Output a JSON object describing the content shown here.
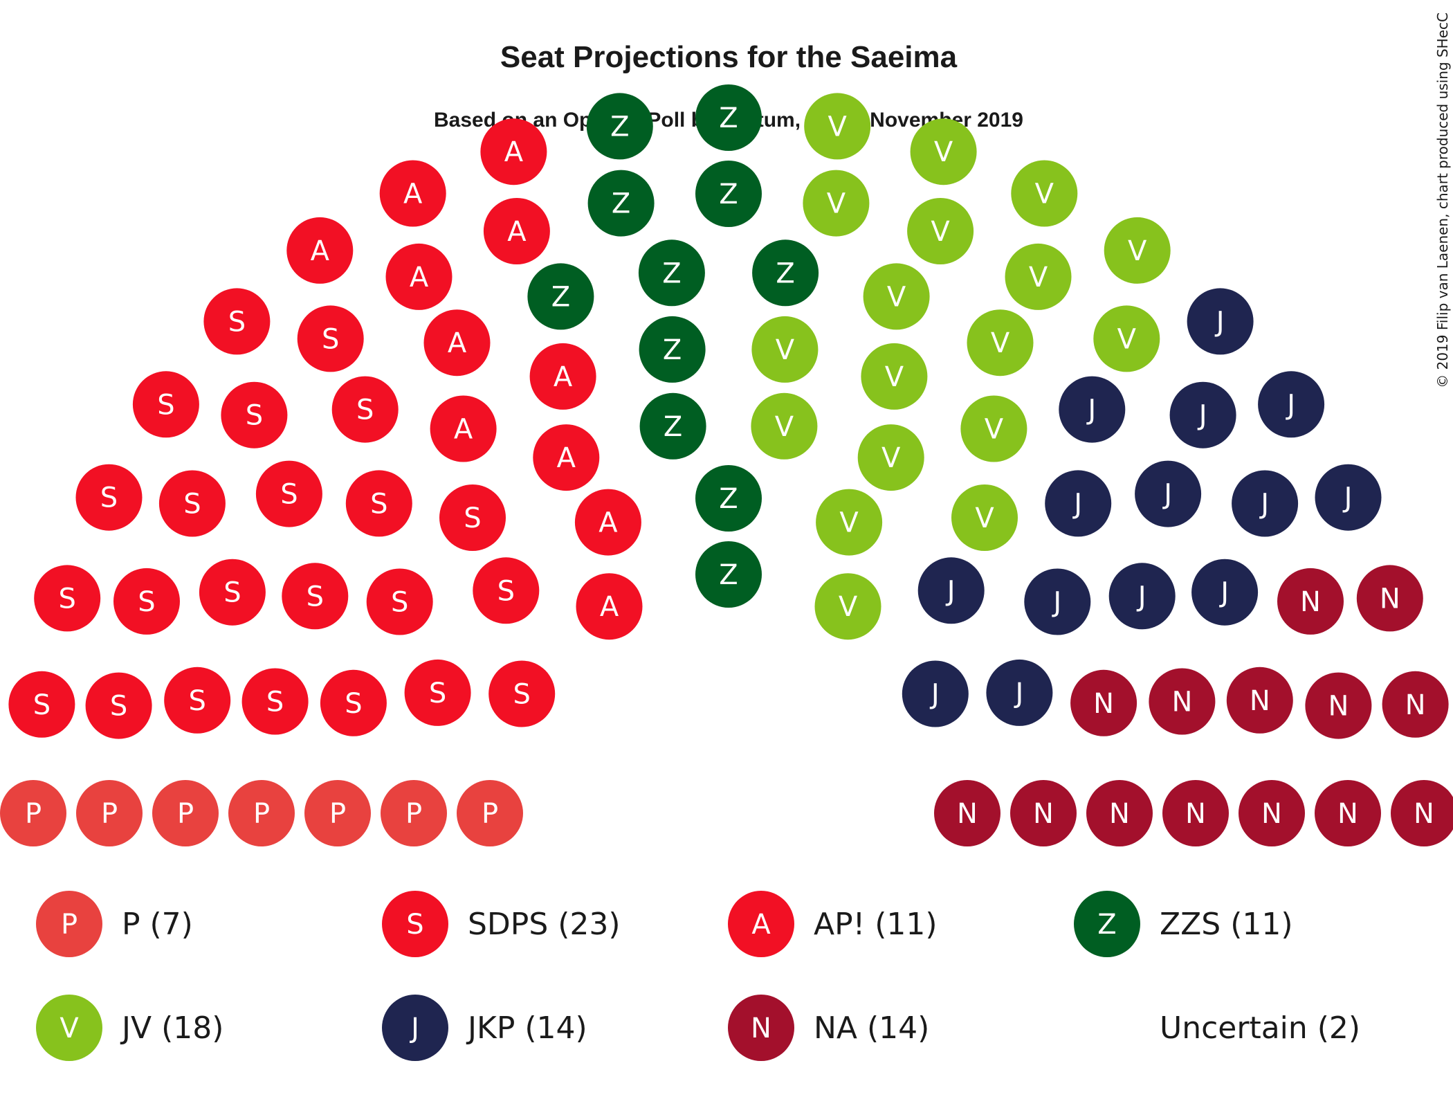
{
  "chart_data": {
    "type": "parliament",
    "title": "Seat Projections for the Saeima",
    "subtitle": "Based on an Opinion Poll by Factum, 21–24 November 2019",
    "copyright": "© 2019 Filip van Laenen, chart produced using SHecC",
    "total_seats": 98,
    "parties": [
      {
        "letter": "P",
        "label": "P (7)",
        "seats": 7,
        "color": "#e8423f"
      },
      {
        "letter": "S",
        "label": "SDPS (23)",
        "seats": 23,
        "color": "#f21024"
      },
      {
        "letter": "A",
        "label": "AP! (11)",
        "seats": 11,
        "color": "#f21024"
      },
      {
        "letter": "Z",
        "label": "ZZS (11)",
        "seats": 11,
        "color": "#005e22"
      },
      {
        "letter": "V",
        "label": "JV (18)",
        "seats": 18,
        "color": "#87c21d"
      },
      {
        "letter": "J",
        "label": "JKP (14)",
        "seats": 14,
        "color": "#1f2550"
      },
      {
        "letter": "N",
        "label": "NA (14)",
        "seats": 14,
        "color": "#a3102c"
      }
    ],
    "uncertain": {
      "label": "Uncertain (2)",
      "seats": 2
    }
  }
}
